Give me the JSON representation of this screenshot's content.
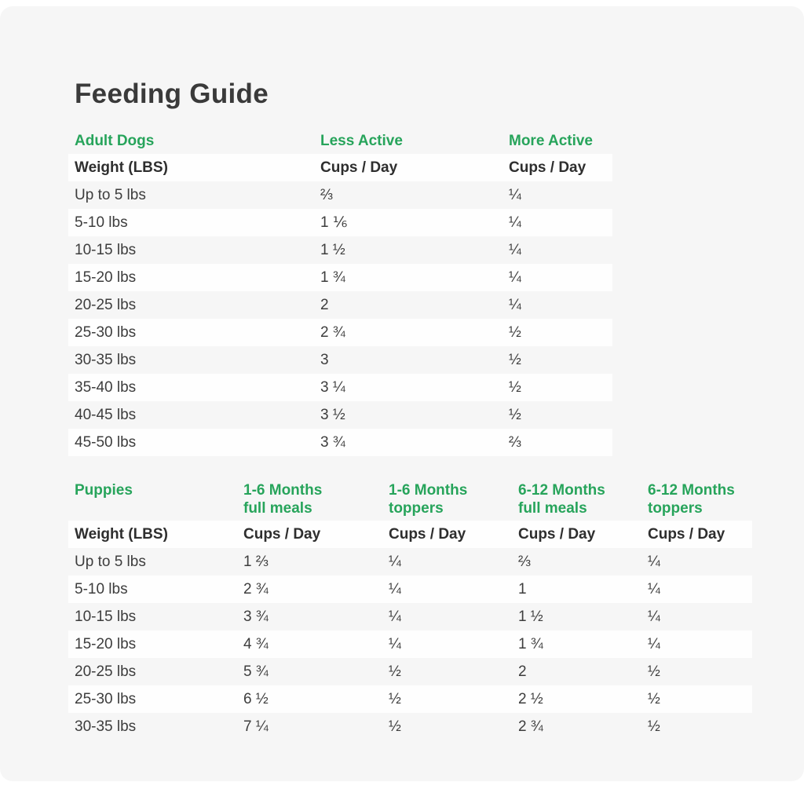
{
  "page": {
    "title": "Feeding Guide"
  },
  "theme": {
    "accent_green": "#27a45b",
    "panel_background": "#f6f6f6",
    "band_white": "#fefefe",
    "heading_dark": "#3a3a3a",
    "text_dark": "#3d3d3d"
  },
  "adult_table": {
    "section_label": "Adult Dogs",
    "activity_headers": [
      "Less Active",
      "More Active"
    ],
    "weight_header": "Weight (LBS)",
    "unit_header": "Cups / Day",
    "rows": [
      {
        "weight": "Up to 5 lbs",
        "less_active": "⅔",
        "more_active": "¼"
      },
      {
        "weight": "5-10 lbs",
        "less_active": "1 ⅙",
        "more_active": "¼"
      },
      {
        "weight": "10-15 lbs",
        "less_active": "1 ½",
        "more_active": "¼"
      },
      {
        "weight": "15-20 lbs",
        "less_active": "1 ¾",
        "more_active": "¼"
      },
      {
        "weight": "20-25 lbs",
        "less_active": "2",
        "more_active": "¼"
      },
      {
        "weight": "25-30 lbs",
        "less_active": "2 ¾",
        "more_active": "½"
      },
      {
        "weight": "30-35 lbs",
        "less_active": "3",
        "more_active": "½"
      },
      {
        "weight": "35-40 lbs",
        "less_active": "3 ¼",
        "more_active": "½"
      },
      {
        "weight": "40-45 lbs",
        "less_active": "3 ½",
        "more_active": "½"
      },
      {
        "weight": "45-50 lbs",
        "less_active": "3 ¾",
        "more_active": "⅔"
      }
    ]
  },
  "puppies_table": {
    "section_label": "Puppies",
    "column_headers": [
      {
        "line1": "1-6 Months",
        "line2": "full meals"
      },
      {
        "line1": "1-6 Months",
        "line2": "toppers"
      },
      {
        "line1": "6-12 Months",
        "line2": "full meals"
      },
      {
        "line1": "6-12 Months",
        "line2": "toppers"
      }
    ],
    "weight_header": "Weight (LBS)",
    "unit_header": "Cups / Day",
    "rows": [
      {
        "weight": "Up to 5 lbs",
        "values": [
          "1 ⅔",
          "¼",
          "⅔",
          "¼"
        ]
      },
      {
        "weight": "5-10 lbs",
        "values": [
          "2 ¾",
          "¼",
          "1",
          "¼"
        ]
      },
      {
        "weight": "10-15 lbs",
        "values": [
          "3 ¾",
          "¼",
          "1 ½",
          "¼"
        ]
      },
      {
        "weight": "15-20 lbs",
        "values": [
          "4 ¾",
          "¼",
          "1 ¾",
          "¼"
        ]
      },
      {
        "weight": "20-25 lbs",
        "values": [
          "5 ¾",
          "½",
          "2",
          "½"
        ]
      },
      {
        "weight": "25-30 lbs",
        "values": [
          "6 ½",
          "½",
          "2 ½",
          "½"
        ]
      },
      {
        "weight": "30-35 lbs",
        "values": [
          "7 ¼",
          "½",
          "2 ¾",
          "½"
        ]
      }
    ]
  }
}
